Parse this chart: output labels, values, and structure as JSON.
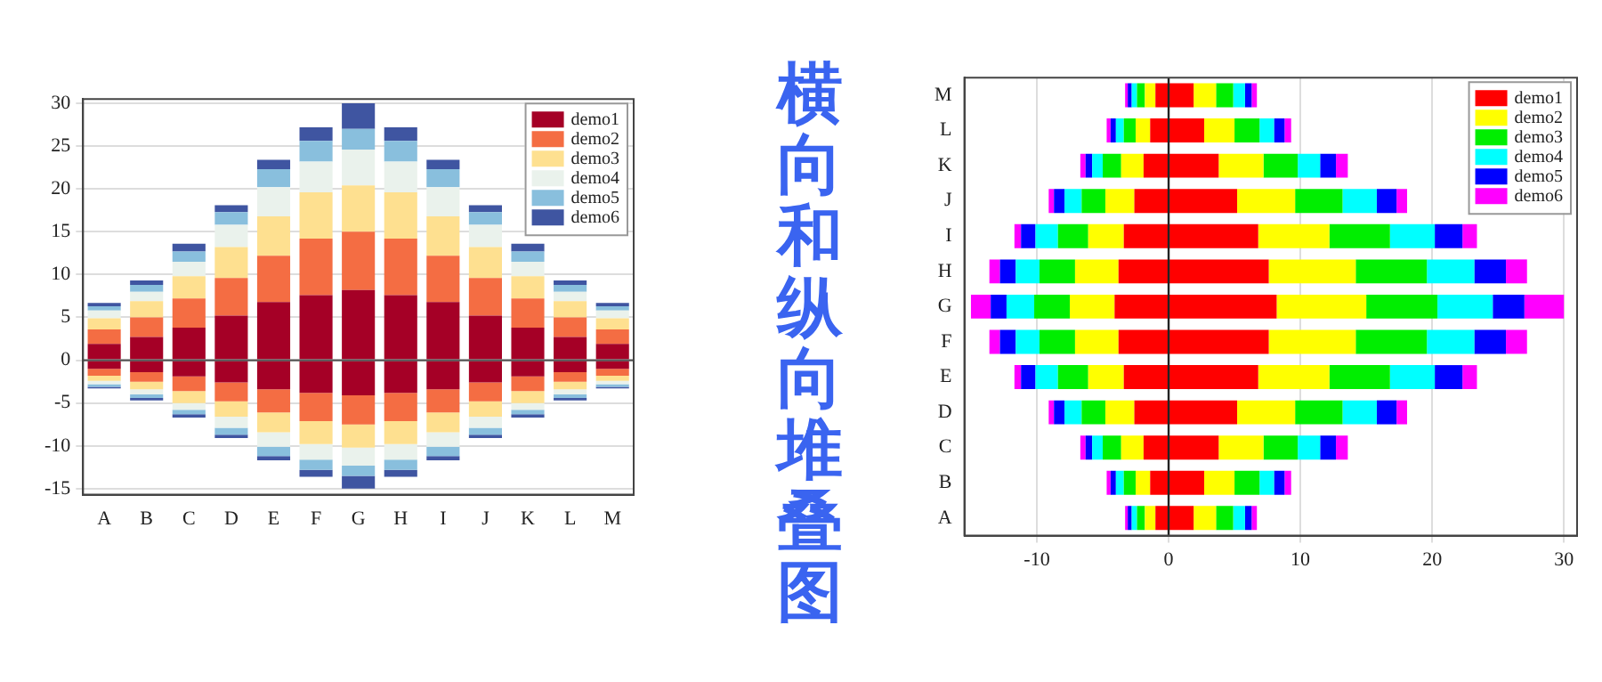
{
  "chart_data": [
    {
      "type": "bar",
      "stacked": true,
      "categories": [
        "A",
        "B",
        "C",
        "D",
        "E",
        "F",
        "G",
        "H",
        "I",
        "J",
        "K",
        "L",
        "M"
      ],
      "ylim": [
        -15.7,
        30.5
      ],
      "yticks": [
        -15,
        -10,
        -5,
        0,
        5,
        10,
        15,
        20,
        25,
        30
      ],
      "grid": "y",
      "legend": "top right",
      "ref_lines": [
        {
          "axis": "y",
          "value": 0,
          "color": "#555555"
        }
      ],
      "series": [
        {
          "name": "demo1",
          "color": "#a50026",
          "values": [
            1.9,
            2.7,
            3.8,
            5.2,
            6.8,
            7.6,
            8.2,
            7.6,
            6.8,
            5.2,
            3.8,
            2.7,
            1.9
          ]
        },
        {
          "name": "demo2",
          "color": "#f46d43",
          "values": [
            1.7,
            2.3,
            3.4,
            4.4,
            5.4,
            6.6,
            6.8,
            6.6,
            5.4,
            4.4,
            3.4,
            2.3,
            1.7
          ]
        },
        {
          "name": "demo3",
          "color": "#fee090",
          "values": [
            1.3,
            1.9,
            2.6,
            3.6,
            4.6,
            5.4,
            5.4,
            5.4,
            4.6,
            3.6,
            2.6,
            1.9,
            1.3
          ]
        },
        {
          "name": "demo4",
          "color": "#eaf2ec",
          "values": [
            0.9,
            1.1,
            1.7,
            2.6,
            3.4,
            3.6,
            4.2,
            3.6,
            3.4,
            2.6,
            1.7,
            1.1,
            0.9
          ]
        },
        {
          "name": "demo5",
          "color": "#89bfdd",
          "values": [
            0.5,
            0.8,
            1.2,
            1.5,
            2.1,
            2.4,
            2.4,
            2.4,
            2.1,
            1.5,
            1.2,
            0.8,
            0.5
          ]
        },
        {
          "name": "demo6",
          "color": "#3f55a1",
          "values": [
            0.4,
            0.5,
            0.9,
            0.8,
            1.1,
            1.6,
            3.0,
            1.6,
            1.1,
            0.8,
            0.9,
            0.5,
            0.4
          ]
        },
        {
          "color": "#a50026",
          "values": [
            -1.0,
            -1.4,
            -1.9,
            -2.6,
            -3.4,
            -3.8,
            -4.1,
            -3.8,
            -3.4,
            -2.6,
            -1.9,
            -1.4,
            -1.0
          ]
        },
        {
          "color": "#f46d43",
          "values": [
            -0.8,
            -1.1,
            -1.7,
            -2.2,
            -2.7,
            -3.3,
            -3.4,
            -3.3,
            -2.7,
            -2.2,
            -1.7,
            -1.1,
            -0.8
          ]
        },
        {
          "color": "#fee090",
          "values": [
            -0.6,
            -0.9,
            -1.4,
            -1.8,
            -2.3,
            -2.7,
            -2.7,
            -2.7,
            -2.3,
            -1.8,
            -1.4,
            -0.9,
            -0.6
          ]
        },
        {
          "color": "#eaf2ec",
          "values": [
            -0.4,
            -0.6,
            -0.8,
            -1.3,
            -1.7,
            -1.8,
            -2.1,
            -1.8,
            -1.7,
            -1.3,
            -0.8,
            -0.6,
            -0.4
          ]
        },
        {
          "color": "#89bfdd",
          "values": [
            -0.3,
            -0.4,
            -0.5,
            -0.8,
            -1.1,
            -1.2,
            -1.2,
            -1.2,
            -1.1,
            -0.8,
            -0.5,
            -0.4,
            -0.3
          ]
        },
        {
          "color": "#3f55a1",
          "values": [
            -0.2,
            -0.3,
            -0.4,
            -0.4,
            -0.5,
            -0.8,
            -1.5,
            -0.8,
            -0.5,
            -0.4,
            -0.4,
            -0.3,
            -0.2
          ]
        }
      ]
    },
    {
      "type": "other",
      "title": "横向和纵向堆叠图"
    },
    {
      "type": "bar",
      "stacked": true,
      "orientation": "horizontal",
      "categories": [
        "M",
        "L",
        "K",
        "J",
        "I",
        "H",
        "G",
        "F",
        "E",
        "D",
        "C",
        "B",
        "A"
      ],
      "xlim": [
        -15.5,
        31
      ],
      "xticks": [
        -10,
        0,
        10,
        20,
        30
      ],
      "grid": "x",
      "legend": "top right",
      "ref_lines": [
        {
          "axis": "x",
          "value": 0,
          "color": "#222222"
        }
      ],
      "series": [
        {
          "name": "demo1",
          "color": "#ff0000",
          "values": [
            1.9,
            2.7,
            3.8,
            5.2,
            6.8,
            7.6,
            8.2,
            7.6,
            6.8,
            5.2,
            3.8,
            2.7,
            1.9
          ]
        },
        {
          "name": "demo2",
          "color": "#ffff00",
          "values": [
            1.7,
            2.3,
            3.4,
            4.4,
            5.4,
            6.6,
            6.8,
            6.6,
            5.4,
            4.4,
            3.4,
            2.3,
            1.7
          ]
        },
        {
          "name": "demo3",
          "color": "#00ee00",
          "values": [
            1.3,
            1.9,
            2.6,
            3.6,
            4.6,
            5.4,
            5.4,
            5.4,
            4.6,
            3.6,
            2.6,
            1.9,
            1.3
          ]
        },
        {
          "name": "demo4",
          "color": "#00ffff",
          "values": [
            0.9,
            1.1,
            1.7,
            2.6,
            3.4,
            3.6,
            4.2,
            3.6,
            3.4,
            2.6,
            1.7,
            1.1,
            0.9
          ]
        },
        {
          "name": "demo5",
          "color": "#0000ff",
          "values": [
            0.5,
            0.8,
            1.2,
            1.5,
            2.1,
            2.4,
            2.4,
            2.4,
            2.1,
            1.5,
            1.2,
            0.8,
            0.5
          ]
        },
        {
          "name": "demo6",
          "color": "#ff00ff",
          "values": [
            0.4,
            0.5,
            0.9,
            0.8,
            1.1,
            1.6,
            3.0,
            1.6,
            1.1,
            0.8,
            0.9,
            0.5,
            0.4
          ]
        },
        {
          "color": "#ff0000",
          "values": [
            -1.0,
            -1.4,
            -1.9,
            -2.6,
            -3.4,
            -3.8,
            -4.1,
            -3.8,
            -3.4,
            -2.6,
            -1.9,
            -1.4,
            -1.0
          ]
        },
        {
          "color": "#ffff00",
          "values": [
            -0.8,
            -1.1,
            -1.7,
            -2.2,
            -2.7,
            -3.3,
            -3.4,
            -3.3,
            -2.7,
            -2.2,
            -1.7,
            -1.1,
            -0.8
          ]
        },
        {
          "color": "#00ee00",
          "values": [
            -0.6,
            -0.9,
            -1.4,
            -1.8,
            -2.3,
            -2.7,
            -2.7,
            -2.7,
            -2.3,
            -1.8,
            -1.4,
            -0.9,
            -0.6
          ]
        },
        {
          "color": "#00ffff",
          "values": [
            -0.4,
            -0.6,
            -0.8,
            -1.3,
            -1.7,
            -1.8,
            -2.1,
            -1.8,
            -1.7,
            -1.3,
            -0.8,
            -0.6,
            -0.4
          ]
        },
        {
          "color": "#0000ff",
          "values": [
            -0.3,
            -0.4,
            -0.5,
            -0.8,
            -1.1,
            -1.2,
            -1.2,
            -1.2,
            -1.1,
            -0.8,
            -0.5,
            -0.4,
            -0.3
          ]
        },
        {
          "color": "#ff00ff",
          "values": [
            -0.2,
            -0.3,
            -0.4,
            -0.4,
            -0.5,
            -0.8,
            -1.5,
            -0.8,
            -0.5,
            -0.4,
            -0.4,
            -0.3,
            -0.2
          ]
        }
      ]
    }
  ]
}
